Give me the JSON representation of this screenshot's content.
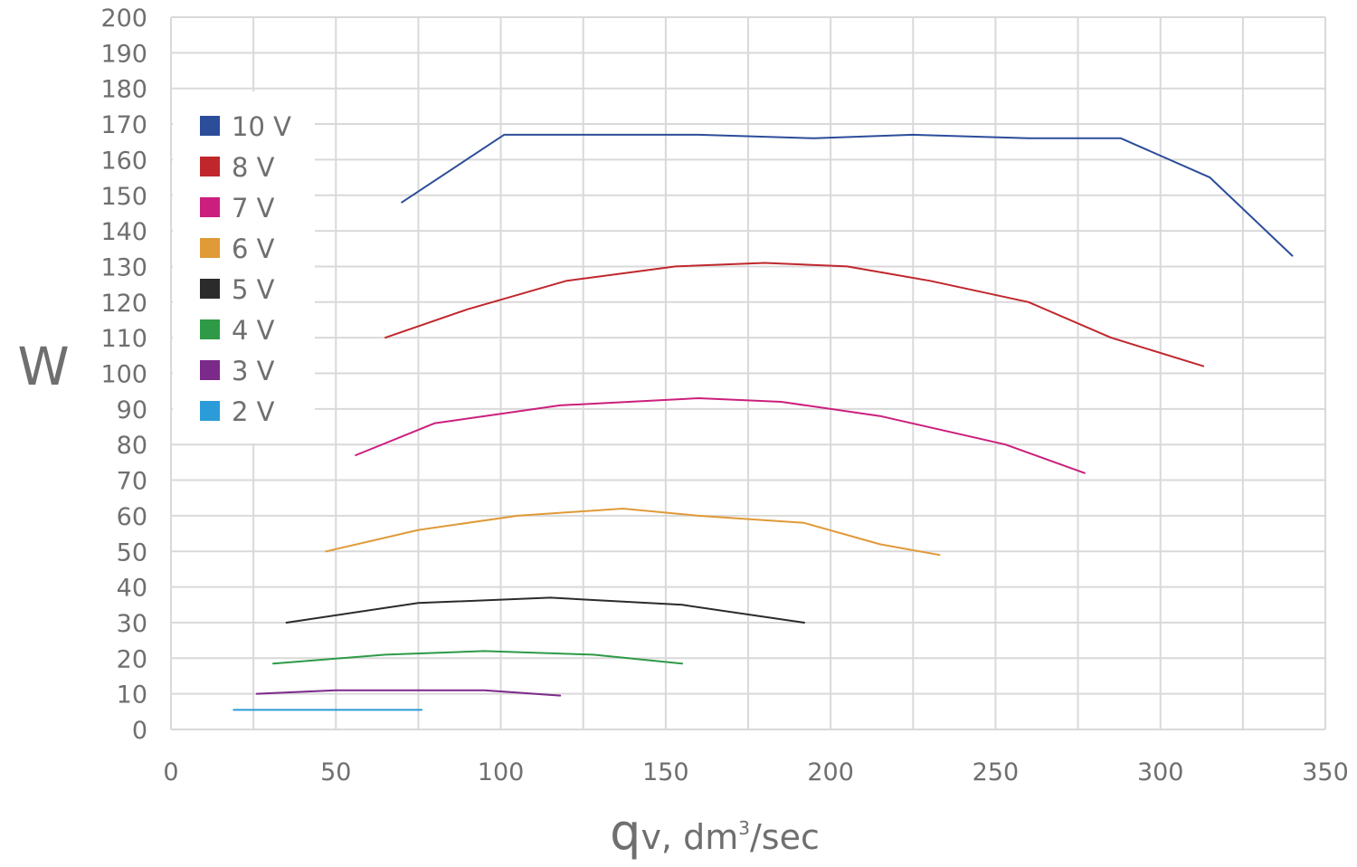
{
  "chart_data": {
    "type": "line",
    "xlabel": "qv, dm³/sec",
    "xlabel_main": "q",
    "xlabel_sub": "v, dm",
    "xlabel_sup": "3",
    "xlabel_tail": "/sec",
    "ylabel": "W",
    "xlim": [
      0,
      350
    ],
    "ylim": [
      0,
      200
    ],
    "x_ticks": [
      "0",
      "50",
      "100",
      "150",
      "200",
      "250",
      "300",
      "350"
    ],
    "y_ticks": [
      "0",
      "10",
      "20",
      "30",
      "40",
      "50",
      "60",
      "70",
      "80",
      "90",
      "100",
      "110",
      "120",
      "130",
      "140",
      "150",
      "160",
      "170",
      "180",
      "190",
      "200"
    ],
    "grid": true,
    "legend_position": "top-left",
    "series": [
      {
        "name": "10 V",
        "color": "#2c4d9a",
        "x": [
          70,
          101,
          160,
          195,
          225,
          260,
          288,
          315,
          340
        ],
        "y": [
          148,
          167,
          167,
          166,
          167,
          166,
          166,
          155,
          133
        ]
      },
      {
        "name": "8 V",
        "color": "#c0272d",
        "x": [
          65,
          90,
          120,
          153,
          180,
          205,
          230,
          260,
          285,
          313
        ],
        "y": [
          110,
          118,
          126,
          130,
          131,
          130,
          126,
          120,
          110,
          102
        ]
      },
      {
        "name": "7 V",
        "color": "#cc1f7d",
        "x": [
          56,
          80,
          118,
          160,
          185,
          215,
          253,
          277
        ],
        "y": [
          77,
          86,
          91,
          93,
          92,
          88,
          80,
          72
        ]
      },
      {
        "name": "6 V",
        "color": "#e09a38",
        "x": [
          47,
          75,
          105,
          137,
          160,
          192,
          215,
          233
        ],
        "y": [
          50,
          56,
          60,
          62,
          60,
          58,
          52,
          49
        ]
      },
      {
        "name": "5 V",
        "color": "#2b2b2b",
        "x": [
          35,
          75,
          115,
          155,
          192
        ],
        "y": [
          30,
          35.5,
          37,
          35,
          30
        ]
      },
      {
        "name": "4 V",
        "color": "#2e9a47",
        "x": [
          31,
          65,
          95,
          128,
          155
        ],
        "y": [
          18.5,
          21,
          22,
          21,
          18.5
        ]
      },
      {
        "name": "3 V",
        "color": "#7b2a8a",
        "x": [
          26,
          50,
          95,
          118
        ],
        "y": [
          10,
          11,
          11,
          9.5
        ]
      },
      {
        "name": "2 V",
        "color": "#2b9cd8",
        "x": [
          19,
          76
        ],
        "y": [
          5.5,
          5.5
        ]
      }
    ]
  }
}
